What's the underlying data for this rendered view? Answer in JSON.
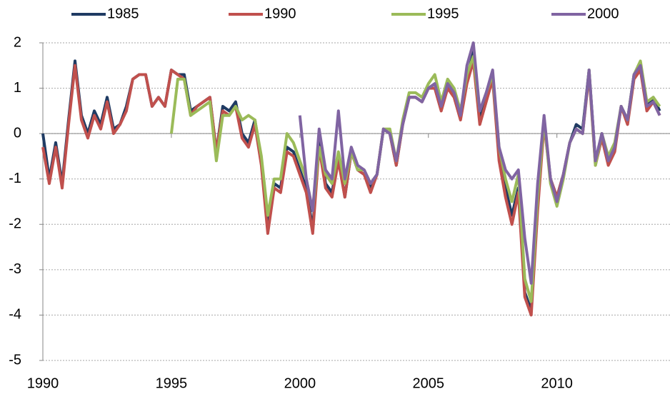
{
  "chart_data": {
    "type": "line",
    "x": [
      1990,
      1990.25,
      1990.5,
      1990.75,
      1991,
      1991.25,
      1991.5,
      1991.75,
      1992,
      1992.25,
      1992.5,
      1992.75,
      1993,
      1993.25,
      1993.5,
      1993.75,
      1994,
      1994.25,
      1994.5,
      1994.75,
      1995,
      1995.25,
      1995.5,
      1995.75,
      1996,
      1996.25,
      1996.5,
      1996.75,
      1997,
      1997.25,
      1997.5,
      1997.75,
      1998,
      1998.25,
      1998.5,
      1998.75,
      1999,
      1999.25,
      1999.5,
      1999.75,
      2000,
      2000.25,
      2000.5,
      2000.75,
      2001,
      2001.25,
      2001.5,
      2001.75,
      2002,
      2002.25,
      2002.5,
      2002.75,
      2003,
      2003.25,
      2003.5,
      2003.75,
      2004,
      2004.25,
      2004.5,
      2004.75,
      2005,
      2005.25,
      2005.5,
      2005.75,
      2006,
      2006.25,
      2006.5,
      2006.75,
      2007,
      2007.25,
      2007.5,
      2007.75,
      2008,
      2008.25,
      2008.5,
      2008.75,
      2009,
      2009.25,
      2009.5,
      2009.75,
      2010,
      2010.25,
      2010.5,
      2010.75,
      2011,
      2011.25,
      2011.5,
      2011.75,
      2012,
      2012.25,
      2012.5,
      2012.75,
      2013,
      2013.25,
      2013.5,
      2013.75,
      2014
    ],
    "series": [
      {
        "name": "1985",
        "color": "#1f3b63",
        "values": [
          0.0,
          -1.0,
          -0.2,
          -1.1,
          0.3,
          1.6,
          0.4,
          0.0,
          0.5,
          0.2,
          0.8,
          0.1,
          0.2,
          0.6,
          1.2,
          1.3,
          1.3,
          0.6,
          0.8,
          0.6,
          1.4,
          1.3,
          1.3,
          0.5,
          0.6,
          0.7,
          0.8,
          -0.4,
          0.6,
          0.5,
          0.7,
          0.0,
          -0.2,
          0.3,
          -0.6,
          -2.1,
          -1.1,
          -1.2,
          -0.3,
          -0.4,
          -0.8,
          -1.2,
          -2.1,
          -0.2,
          -1.1,
          -1.3,
          -0.5,
          -1.4,
          -0.4,
          -0.8,
          -0.9,
          -1.2,
          -0.9,
          0.1,
          0.0,
          -0.7,
          0.2,
          0.8,
          0.8,
          0.7,
          1.0,
          1.1,
          0.6,
          1.1,
          0.9,
          0.4,
          1.2,
          1.8,
          0.4,
          0.8,
          1.3,
          -0.5,
          -1.2,
          -1.8,
          -1.2,
          -3.5,
          -3.9,
          -1.6,
          0.3,
          -1.0,
          -1.4,
          -0.9,
          -0.2,
          0.2,
          0.1,
          1.4,
          -0.6,
          0.0,
          -0.6,
          -0.3,
          0.6,
          0.3,
          1.3,
          1.5,
          0.6,
          0.8,
          0.5
        ]
      },
      {
        "name": "1990",
        "color": "#c0504d",
        "values": [
          -0.3,
          -1.1,
          -0.3,
          -1.2,
          0.2,
          1.5,
          0.3,
          -0.1,
          0.4,
          0.1,
          0.7,
          0.0,
          0.2,
          0.5,
          1.2,
          1.3,
          1.3,
          0.6,
          0.8,
          0.6,
          1.4,
          1.3,
          1.2,
          0.4,
          0.6,
          0.7,
          0.8,
          -0.4,
          0.5,
          0.4,
          0.6,
          -0.1,
          -0.3,
          0.2,
          -0.7,
          -2.2,
          -1.2,
          -1.3,
          -0.4,
          -0.5,
          -0.9,
          -1.3,
          -2.2,
          -0.3,
          -1.2,
          -1.4,
          -0.6,
          -1.4,
          -0.4,
          -0.8,
          -0.9,
          -1.3,
          -0.9,
          0.1,
          0.0,
          -0.7,
          0.2,
          0.8,
          0.8,
          0.7,
          1.0,
          1.0,
          0.5,
          1.0,
          0.8,
          0.3,
          1.1,
          1.6,
          0.2,
          0.7,
          1.2,
          -0.6,
          -1.4,
          -2.0,
          -1.3,
          -3.6,
          -4.0,
          -1.7,
          0.2,
          -1.0,
          -1.4,
          -0.9,
          -0.2,
          0.1,
          0.0,
          1.3,
          -0.7,
          -0.1,
          -0.7,
          -0.4,
          0.6,
          0.2,
          1.2,
          1.4,
          0.5,
          0.7,
          0.4
        ]
      },
      {
        "name": "1995",
        "color": "#9bbb59",
        "values": [
          null,
          null,
          null,
          null,
          null,
          null,
          null,
          null,
          null,
          null,
          null,
          null,
          null,
          null,
          null,
          null,
          null,
          null,
          null,
          null,
          0.0,
          1.2,
          1.2,
          0.4,
          0.5,
          0.6,
          0.7,
          -0.6,
          0.4,
          0.4,
          0.6,
          0.3,
          0.4,
          0.3,
          -0.5,
          -1.8,
          -1.0,
          -1.0,
          0.0,
          -0.2,
          -0.6,
          -1.0,
          -1.7,
          -0.3,
          -0.9,
          -1.1,
          -0.4,
          -1.1,
          -0.4,
          -0.8,
          -0.8,
          -1.1,
          -0.9,
          0.1,
          0.1,
          -0.6,
          0.3,
          0.9,
          0.9,
          0.8,
          1.1,
          1.3,
          0.7,
          1.2,
          1.0,
          0.5,
          1.3,
          1.7,
          0.5,
          0.9,
          1.3,
          -0.3,
          -1.0,
          -1.5,
          -0.9,
          -3.2,
          -3.7,
          -1.4,
          0.3,
          -1.1,
          -1.6,
          -1.0,
          -0.2,
          0.1,
          0.0,
          1.4,
          -0.7,
          0.0,
          -0.5,
          -0.2,
          0.6,
          0.3,
          1.3,
          1.6,
          0.7,
          0.8,
          0.6
        ]
      },
      {
        "name": "2000",
        "color": "#8064a2",
        "values": [
          null,
          null,
          null,
          null,
          null,
          null,
          null,
          null,
          null,
          null,
          null,
          null,
          null,
          null,
          null,
          null,
          null,
          null,
          null,
          null,
          null,
          null,
          null,
          null,
          null,
          null,
          null,
          null,
          null,
          null,
          null,
          null,
          null,
          null,
          null,
          null,
          null,
          null,
          null,
          null,
          0.4,
          -1.0,
          -1.7,
          0.1,
          -0.8,
          -1.0,
          0.5,
          -1.0,
          -0.3,
          -0.7,
          -0.8,
          -1.1,
          -0.9,
          0.1,
          0.0,
          -0.6,
          0.2,
          0.8,
          0.8,
          0.7,
          1.0,
          1.1,
          0.6,
          1.1,
          0.9,
          0.4,
          1.5,
          2.0,
          0.5,
          0.9,
          1.4,
          -0.3,
          -0.8,
          -1.0,
          -0.8,
          -2.3,
          -3.3,
          -1.1,
          0.4,
          -1.0,
          -1.5,
          -0.9,
          -0.2,
          0.1,
          0.0,
          1.4,
          -0.6,
          0.0,
          -0.6,
          -0.3,
          0.6,
          0.3,
          1.3,
          1.5,
          0.6,
          0.7,
          0.4
        ]
      }
    ],
    "xlim": [
      1990,
      2014.4
    ],
    "xticks": [
      1990,
      1995,
      2000,
      2005,
      2010
    ],
    "ylim": [
      -5,
      2
    ],
    "yticks": [
      -5,
      -4,
      -3,
      -2,
      -1,
      0,
      1,
      2
    ],
    "grid": true,
    "legend": "top"
  }
}
